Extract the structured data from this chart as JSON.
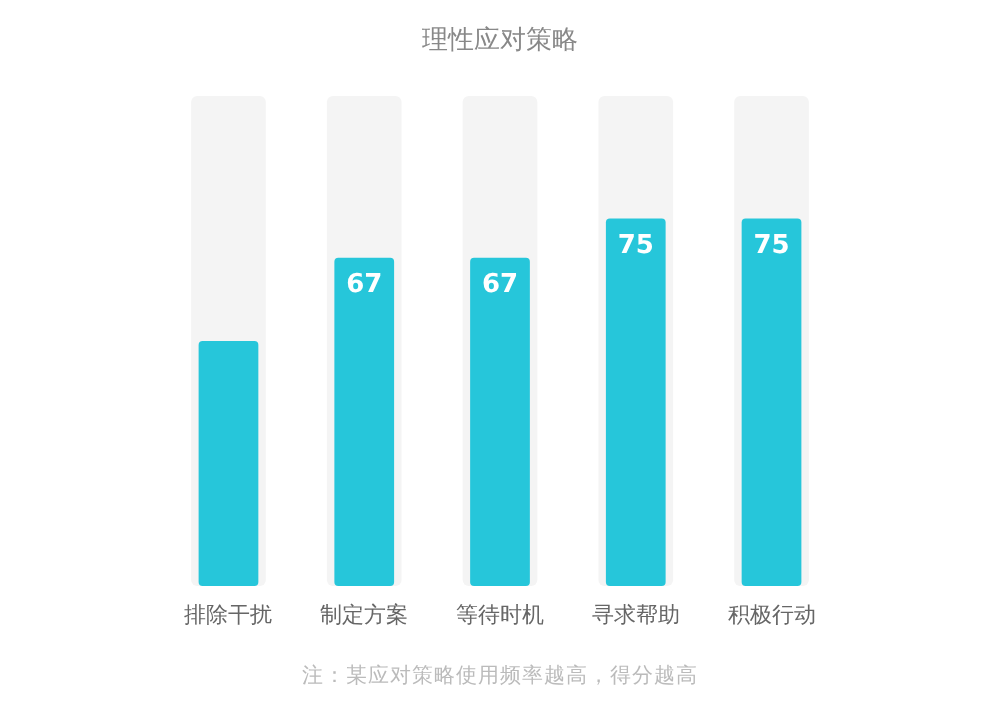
{
  "chart_data": {
    "type": "bar",
    "title": "理性应对策略",
    "categories": [
      "排除干扰",
      "制定方案",
      "等待时机",
      "寻求帮助",
      "积极行动"
    ],
    "values": [
      50,
      67,
      67,
      75,
      75
    ],
    "value_labels": [
      null,
      "67",
      "67",
      "75",
      "75"
    ],
    "color": "#26c6da",
    "ylim": [
      0,
      100
    ],
    "tick_labels": "x",
    "annotations": [
      "注：某应对策略使用频率越高，得分越高"
    ]
  }
}
